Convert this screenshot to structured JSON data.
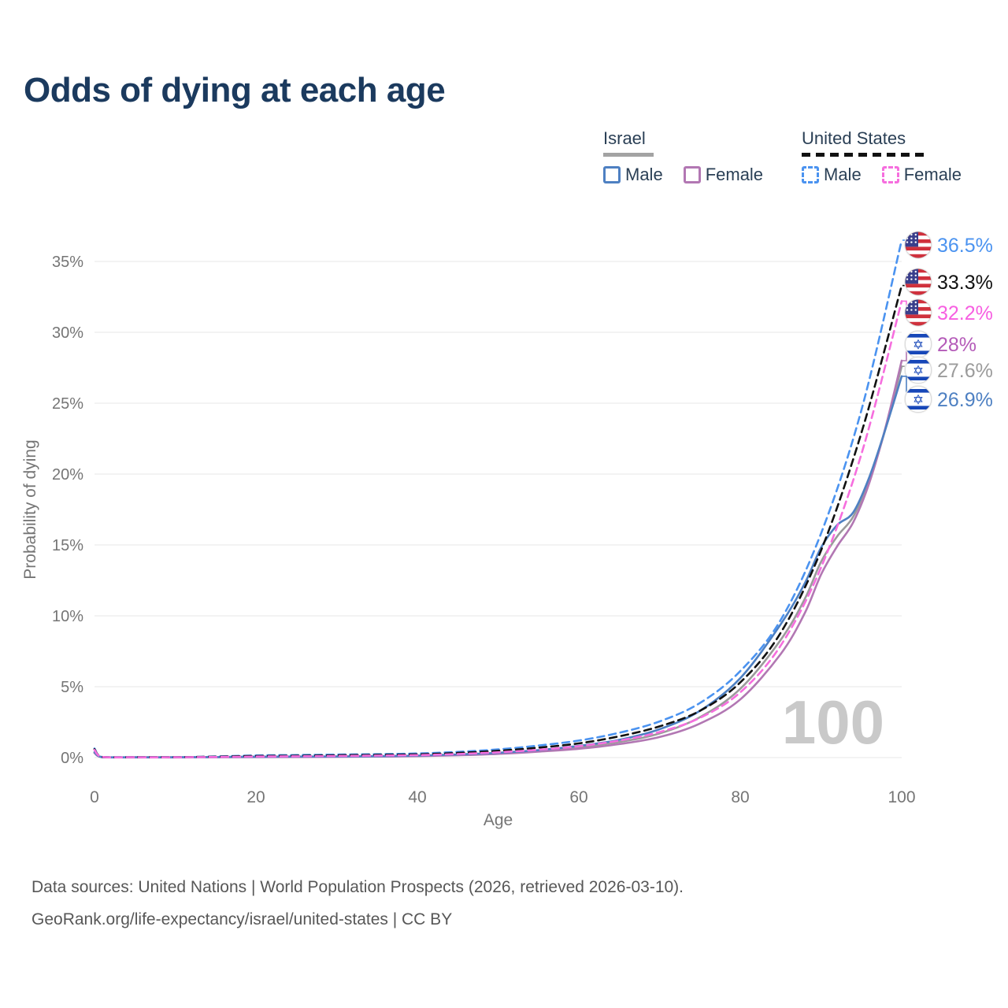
{
  "title": "Odds of dying at each age",
  "legend": {
    "israel": {
      "label": "Israel",
      "male": "Male",
      "female": "Female"
    },
    "us": {
      "label": "United States",
      "male": "Male",
      "female": "Female"
    }
  },
  "chart_data": {
    "type": "line",
    "title": "Odds of dying at each age",
    "xlabel": "Age",
    "ylabel": "Probability of dying",
    "xlim": [
      0,
      100
    ],
    "ylim_pct": [
      0,
      37
    ],
    "grid": true,
    "legend_position": "top-right",
    "watermark": "100",
    "x_ticks": [
      {
        "v": 0,
        "label": "0"
      },
      {
        "v": 20,
        "label": "20"
      },
      {
        "v": 40,
        "label": "40"
      },
      {
        "v": 60,
        "label": "60"
      },
      {
        "v": 80,
        "label": "80"
      },
      {
        "v": 100,
        "label": "100"
      }
    ],
    "y_ticks": [
      {
        "v": 0,
        "label": "0%"
      },
      {
        "v": 5,
        "label": "5%"
      },
      {
        "v": 10,
        "label": "10%"
      },
      {
        "v": 15,
        "label": "15%"
      },
      {
        "v": 20,
        "label": "20%"
      },
      {
        "v": 25,
        "label": "25%"
      },
      {
        "v": 30,
        "label": "30%"
      },
      {
        "v": 35,
        "label": "35%"
      }
    ],
    "series": [
      {
        "id": "israel-combined",
        "name": "Israel (both sexes)",
        "color": "#9b9b9b",
        "dash": "solid",
        "end_value_pct": 27.6,
        "points_age_pct": [
          [
            0,
            0.35
          ],
          [
            1,
            0.03
          ],
          [
            5,
            0.02
          ],
          [
            10,
            0.02
          ],
          [
            15,
            0.03
          ],
          [
            20,
            0.05
          ],
          [
            25,
            0.06
          ],
          [
            30,
            0.07
          ],
          [
            35,
            0.08
          ],
          [
            40,
            0.12
          ],
          [
            45,
            0.19
          ],
          [
            50,
            0.3
          ],
          [
            55,
            0.47
          ],
          [
            60,
            0.72
          ],
          [
            65,
            1.1
          ],
          [
            70,
            1.7
          ],
          [
            75,
            2.85
          ],
          [
            80,
            4.85
          ],
          [
            85,
            8.3
          ],
          [
            88,
            11.2
          ],
          [
            90,
            13.8
          ],
          [
            92,
            15.6
          ],
          [
            94,
            17.0
          ],
          [
            96,
            19.6
          ],
          [
            98,
            23.2
          ],
          [
            100,
            27.6
          ]
        ]
      },
      {
        "id": "israel-female",
        "name": "Israel Female",
        "color": "#b277b3",
        "dash": "solid",
        "end_value_pct": 28,
        "points_age_pct": [
          [
            0,
            0.32
          ],
          [
            1,
            0.02
          ],
          [
            5,
            0.01
          ],
          [
            10,
            0.01
          ],
          [
            15,
            0.02
          ],
          [
            20,
            0.03
          ],
          [
            25,
            0.04
          ],
          [
            30,
            0.05
          ],
          [
            35,
            0.07
          ],
          [
            40,
            0.1
          ],
          [
            45,
            0.16
          ],
          [
            50,
            0.26
          ],
          [
            55,
            0.42
          ],
          [
            60,
            0.62
          ],
          [
            65,
            0.95
          ],
          [
            70,
            1.45
          ],
          [
            75,
            2.4
          ],
          [
            80,
            4.1
          ],
          [
            85,
            7.3
          ],
          [
            88,
            10.2
          ],
          [
            90,
            12.9
          ],
          [
            92,
            14.9
          ],
          [
            94,
            16.6
          ],
          [
            96,
            19.4
          ],
          [
            98,
            23.3
          ],
          [
            100,
            28.0
          ]
        ]
      },
      {
        "id": "israel-male",
        "name": "Israel Male",
        "color": "#4e80c2",
        "dash": "solid",
        "end_value_pct": 26.9,
        "points_age_pct": [
          [
            0,
            0.38
          ],
          [
            1,
            0.03
          ],
          [
            5,
            0.02
          ],
          [
            10,
            0.02
          ],
          [
            15,
            0.04
          ],
          [
            20,
            0.06
          ],
          [
            25,
            0.07
          ],
          [
            30,
            0.08
          ],
          [
            35,
            0.1
          ],
          [
            40,
            0.14
          ],
          [
            45,
            0.22
          ],
          [
            50,
            0.34
          ],
          [
            55,
            0.52
          ],
          [
            60,
            0.82
          ],
          [
            65,
            1.25
          ],
          [
            70,
            2.0
          ],
          [
            75,
            3.3
          ],
          [
            80,
            5.6
          ],
          [
            85,
            9.4
          ],
          [
            88,
            12.3
          ],
          [
            90,
            14.8
          ],
          [
            92,
            16.4
          ],
          [
            94,
            17.3
          ],
          [
            96,
            19.8
          ],
          [
            98,
            23.2
          ],
          [
            100,
            26.9
          ]
        ]
      },
      {
        "id": "us-male",
        "name": "United States Male",
        "color": "#4b93f0",
        "dash": "dashed",
        "end_value_pct": 36.5,
        "points_age_pct": [
          [
            0,
            0.64
          ],
          [
            1,
            0.04
          ],
          [
            5,
            0.03
          ],
          [
            10,
            0.03
          ],
          [
            15,
            0.08
          ],
          [
            20,
            0.15
          ],
          [
            25,
            0.18
          ],
          [
            30,
            0.21
          ],
          [
            35,
            0.24
          ],
          [
            40,
            0.29
          ],
          [
            45,
            0.4
          ],
          [
            50,
            0.58
          ],
          [
            55,
            0.85
          ],
          [
            60,
            1.2
          ],
          [
            65,
            1.75
          ],
          [
            70,
            2.55
          ],
          [
            75,
            3.85
          ],
          [
            80,
            6.1
          ],
          [
            85,
            9.7
          ],
          [
            90,
            15.8
          ],
          [
            95,
            24.5
          ],
          [
            100,
            36.5
          ]
        ]
      },
      {
        "id": "us-combined",
        "name": "United States (both sexes)",
        "color": "#111111",
        "dash": "dashed",
        "end_value_pct": 33.3,
        "points_age_pct": [
          [
            0,
            0.59
          ],
          [
            1,
            0.04
          ],
          [
            5,
            0.03
          ],
          [
            10,
            0.03
          ],
          [
            15,
            0.06
          ],
          [
            20,
            0.11
          ],
          [
            25,
            0.13
          ],
          [
            30,
            0.16
          ],
          [
            35,
            0.19
          ],
          [
            40,
            0.23
          ],
          [
            45,
            0.33
          ],
          [
            50,
            0.48
          ],
          [
            55,
            0.7
          ],
          [
            60,
            1.0
          ],
          [
            65,
            1.5
          ],
          [
            70,
            2.2
          ],
          [
            75,
            3.3
          ],
          [
            80,
            5.3
          ],
          [
            85,
            8.8
          ],
          [
            90,
            14.6
          ],
          [
            95,
            22.9
          ],
          [
            100,
            33.3
          ]
        ]
      },
      {
        "id": "us-female",
        "name": "United States Female",
        "color": "#f66ede",
        "dash": "dashed",
        "end_value_pct": 32.2,
        "points_age_pct": [
          [
            0,
            0.54
          ],
          [
            1,
            0.04
          ],
          [
            5,
            0.02
          ],
          [
            10,
            0.02
          ],
          [
            15,
            0.04
          ],
          [
            20,
            0.07
          ],
          [
            25,
            0.09
          ],
          [
            30,
            0.11
          ],
          [
            35,
            0.14
          ],
          [
            40,
            0.17
          ],
          [
            45,
            0.25
          ],
          [
            50,
            0.37
          ],
          [
            55,
            0.55
          ],
          [
            60,
            0.8
          ],
          [
            65,
            1.2
          ],
          [
            70,
            1.8
          ],
          [
            75,
            2.8
          ],
          [
            80,
            4.6
          ],
          [
            85,
            7.9
          ],
          [
            90,
            13.4
          ],
          [
            95,
            21.4
          ],
          [
            100,
            32.2
          ]
        ]
      }
    ],
    "end_labels": [
      {
        "series": "us-male",
        "flag": "us",
        "text": "36.5%",
        "value_pct": 36.5,
        "text_color": "#4b93f0"
      },
      {
        "series": "us-combined",
        "flag": "us",
        "text": "33.3%",
        "value_pct": 33.3,
        "text_color": "#111111"
      },
      {
        "series": "us-female",
        "flag": "us",
        "text": "32.2%",
        "value_pct": 32.2,
        "text_color": "#f75fe1"
      },
      {
        "series": "israel-female",
        "flag": "israel",
        "text": "28%",
        "value_pct": 28,
        "text_color": "#b45ab8"
      },
      {
        "series": "israel-combined",
        "flag": "israel",
        "text": "27.6%",
        "value_pct": 27.6,
        "text_color": "#9b9b9b"
      },
      {
        "series": "israel-male",
        "flag": "israel",
        "text": "26.9%",
        "value_pct": 26.9,
        "text_color": "#4e80c2"
      }
    ]
  },
  "footer": {
    "line1": "Data sources: United Nations | World Population Prospects (2026, retrieved 2026-03-10).",
    "line2": "GeoRank.org/life-expectancy/israel/united-states | CC BY"
  }
}
